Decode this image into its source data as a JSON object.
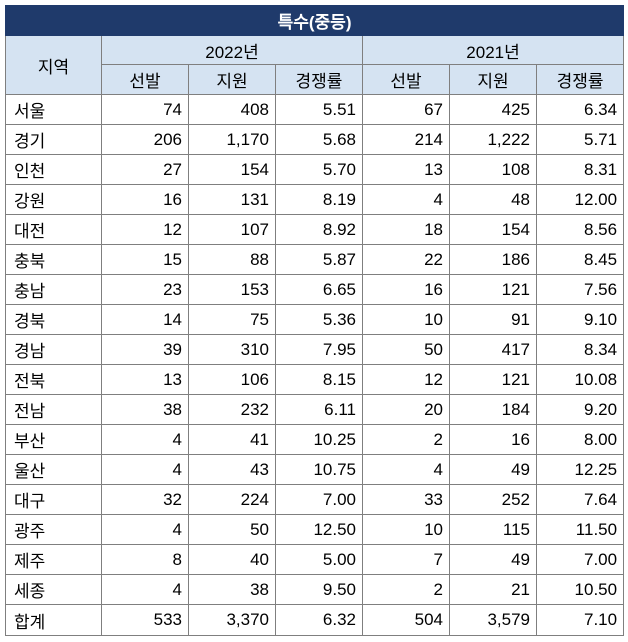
{
  "title": "특수(중등)",
  "region_header": "지역",
  "years": [
    "2022년",
    "2021년"
  ],
  "columns": [
    "선발",
    "지원",
    "경쟁률"
  ],
  "rows": [
    {
      "region": "서울",
      "values": [
        "74",
        "408",
        "5.51",
        "67",
        "425",
        "6.34"
      ]
    },
    {
      "region": "경기",
      "values": [
        "206",
        "1,170",
        "5.68",
        "214",
        "1,222",
        "5.71"
      ]
    },
    {
      "region": "인천",
      "values": [
        "27",
        "154",
        "5.70",
        "13",
        "108",
        "8.31"
      ]
    },
    {
      "region": "강원",
      "values": [
        "16",
        "131",
        "8.19",
        "4",
        "48",
        "12.00"
      ]
    },
    {
      "region": "대전",
      "values": [
        "12",
        "107",
        "8.92",
        "18",
        "154",
        "8.56"
      ]
    },
    {
      "region": "충북",
      "values": [
        "15",
        "88",
        "5.87",
        "22",
        "186",
        "8.45"
      ]
    },
    {
      "region": "충남",
      "values": [
        "23",
        "153",
        "6.65",
        "16",
        "121",
        "7.56"
      ]
    },
    {
      "region": "경북",
      "values": [
        "14",
        "75",
        "5.36",
        "10",
        "91",
        "9.10"
      ]
    },
    {
      "region": "경남",
      "values": [
        "39",
        "310",
        "7.95",
        "50",
        "417",
        "8.34"
      ]
    },
    {
      "region": "전북",
      "values": [
        "13",
        "106",
        "8.15",
        "12",
        "121",
        "10.08"
      ]
    },
    {
      "region": "전남",
      "values": [
        "38",
        "232",
        "6.11",
        "20",
        "184",
        "9.20"
      ]
    },
    {
      "region": "부산",
      "values": [
        "4",
        "41",
        "10.25",
        "2",
        "16",
        "8.00"
      ]
    },
    {
      "region": "울산",
      "values": [
        "4",
        "43",
        "10.75",
        "4",
        "49",
        "12.25"
      ]
    },
    {
      "region": "대구",
      "values": [
        "32",
        "224",
        "7.00",
        "33",
        "252",
        "7.64"
      ]
    },
    {
      "region": "광주",
      "values": [
        "4",
        "50",
        "12.50",
        "10",
        "115",
        "11.50"
      ]
    },
    {
      "region": "제주",
      "values": [
        "8",
        "40",
        "5.00",
        "7",
        "49",
        "7.00"
      ]
    },
    {
      "region": "세종",
      "values": [
        "4",
        "38",
        "9.50",
        "2",
        "21",
        "10.50"
      ]
    },
    {
      "region": "합계",
      "values": [
        "533",
        "3,370",
        "6.32",
        "504",
        "3,579",
        "7.10"
      ]
    }
  ],
  "colors": {
    "title_bg": "#1f3a6b",
    "title_text": "#ffffff",
    "header_bg": "#d5e3f2",
    "border": "#7f7f7f"
  }
}
